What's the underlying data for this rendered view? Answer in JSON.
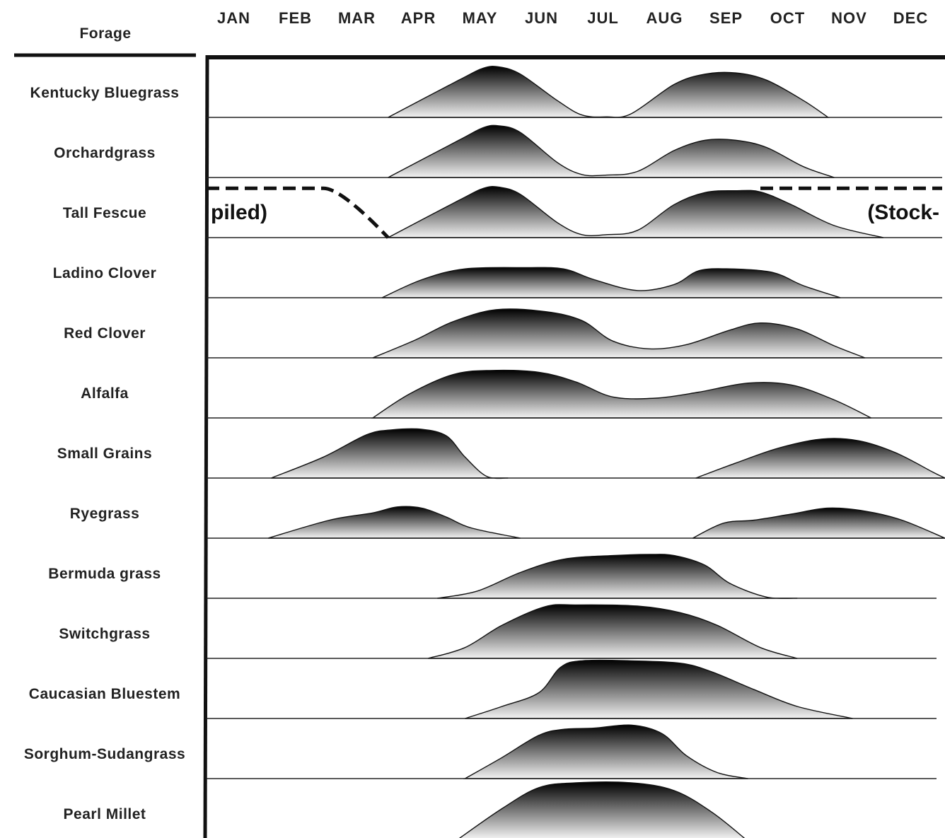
{
  "chart_data": {
    "type": "area",
    "row_header": "Forage",
    "months": [
      "JAN",
      "FEB",
      "MAR",
      "APR",
      "MAY",
      "JUN",
      "JUL",
      "AUG",
      "SEP",
      "OCT",
      "NOV",
      "DEC"
    ],
    "x_range": [
      0,
      12
    ],
    "y_range": [
      0,
      1
    ],
    "fill_gradient": {
      "top": "#000000",
      "bottom": "#f2f2f2"
    },
    "series": [
      {
        "name": "Kentucky Bluegrass",
        "points": [
          [
            2.95,
            0
          ],
          [
            4.1,
            0.62
          ],
          [
            4.5,
            0.82
          ],
          [
            4.75,
            0.84
          ],
          [
            5.1,
            0.72
          ],
          [
            5.7,
            0.28
          ],
          [
            6.1,
            0.04
          ],
          [
            6.5,
            0.01
          ],
          [
            6.9,
            0.06
          ],
          [
            7.6,
            0.55
          ],
          [
            8.1,
            0.72
          ],
          [
            8.6,
            0.74
          ],
          [
            9.1,
            0.62
          ],
          [
            9.7,
            0.28
          ],
          [
            10.1,
            0
          ]
        ]
      },
      {
        "name": "Orchardgrass",
        "points": [
          [
            2.95,
            0
          ],
          [
            4.1,
            0.62
          ],
          [
            4.5,
            0.83
          ],
          [
            4.75,
            0.86
          ],
          [
            5.1,
            0.75
          ],
          [
            5.7,
            0.25
          ],
          [
            6.1,
            0.05
          ],
          [
            6.5,
            0.04
          ],
          [
            7.0,
            0.1
          ],
          [
            7.6,
            0.45
          ],
          [
            8.1,
            0.62
          ],
          [
            8.6,
            0.62
          ],
          [
            9.1,
            0.5
          ],
          [
            9.7,
            0.18
          ],
          [
            10.2,
            0
          ]
        ]
      },
      {
        "name": "Tall Fescue",
        "points": [
          [
            2.95,
            0
          ],
          [
            4.1,
            0.62
          ],
          [
            4.5,
            0.82
          ],
          [
            4.75,
            0.84
          ],
          [
            5.1,
            0.72
          ],
          [
            5.7,
            0.25
          ],
          [
            6.1,
            0.05
          ],
          [
            6.5,
            0.05
          ],
          [
            7.0,
            0.12
          ],
          [
            7.6,
            0.55
          ],
          [
            8.1,
            0.75
          ],
          [
            8.6,
            0.78
          ],
          [
            9.0,
            0.76
          ],
          [
            9.5,
            0.55
          ],
          [
            10.2,
            0.2
          ],
          [
            11.0,
            0
          ]
        ]
      },
      {
        "name": "Ladino Clover",
        "points": [
          [
            2.85,
            0
          ],
          [
            3.5,
            0.3
          ],
          [
            4.2,
            0.48
          ],
          [
            5.2,
            0.5
          ],
          [
            5.8,
            0.48
          ],
          [
            6.3,
            0.3
          ],
          [
            7.0,
            0.12
          ],
          [
            7.6,
            0.22
          ],
          [
            8.0,
            0.45
          ],
          [
            8.5,
            0.48
          ],
          [
            9.2,
            0.42
          ],
          [
            9.7,
            0.2
          ],
          [
            10.3,
            0
          ]
        ]
      },
      {
        "name": "Red Clover",
        "points": [
          [
            2.7,
            0
          ],
          [
            3.4,
            0.3
          ],
          [
            4.0,
            0.6
          ],
          [
            4.7,
            0.8
          ],
          [
            5.5,
            0.77
          ],
          [
            6.1,
            0.62
          ],
          [
            6.6,
            0.28
          ],
          [
            7.2,
            0.15
          ],
          [
            7.8,
            0.22
          ],
          [
            8.5,
            0.46
          ],
          [
            9.0,
            0.58
          ],
          [
            9.6,
            0.48
          ],
          [
            10.2,
            0.2
          ],
          [
            10.7,
            0
          ]
        ]
      },
      {
        "name": "Alfalfa",
        "points": [
          [
            2.7,
            0
          ],
          [
            3.3,
            0.4
          ],
          [
            4.0,
            0.72
          ],
          [
            4.6,
            0.79
          ],
          [
            5.4,
            0.76
          ],
          [
            6.0,
            0.6
          ],
          [
            6.6,
            0.35
          ],
          [
            7.3,
            0.33
          ],
          [
            8.0,
            0.43
          ],
          [
            8.8,
            0.58
          ],
          [
            9.5,
            0.55
          ],
          [
            10.2,
            0.3
          ],
          [
            10.8,
            0
          ]
        ]
      },
      {
        "name": "Small Grains",
        "points": [
          [
            1.05,
            0
          ],
          [
            1.9,
            0.35
          ],
          [
            2.6,
            0.72
          ],
          [
            3.0,
            0.8
          ],
          [
            3.5,
            0.81
          ],
          [
            3.9,
            0.7
          ],
          [
            4.2,
            0.35
          ],
          [
            4.55,
            0.03
          ],
          [
            4.9,
            0
          ],
          [
            7.95,
            0
          ],
          [
            8.6,
            0.25
          ],
          [
            9.3,
            0.5
          ],
          [
            10.0,
            0.65
          ],
          [
            10.6,
            0.62
          ],
          [
            11.2,
            0.42
          ],
          [
            11.8,
            0.1
          ],
          [
            12.0,
            0
          ]
        ]
      },
      {
        "name": "Ryegrass",
        "points": [
          [
            1.0,
            0
          ],
          [
            2.0,
            0.3
          ],
          [
            2.7,
            0.42
          ],
          [
            3.1,
            0.52
          ],
          [
            3.5,
            0.5
          ],
          [
            3.9,
            0.35
          ],
          [
            4.3,
            0.17
          ],
          [
            5.1,
            0
          ],
          [
            7.9,
            0
          ],
          [
            8.4,
            0.25
          ],
          [
            8.9,
            0.3
          ],
          [
            9.5,
            0.4
          ],
          [
            10.1,
            0.5
          ],
          [
            10.7,
            0.45
          ],
          [
            11.3,
            0.3
          ],
          [
            12.0,
            0
          ]
        ]
      },
      {
        "name": "Bermuda grass",
        "points": [
          [
            3.75,
            0
          ],
          [
            4.4,
            0.12
          ],
          [
            5.1,
            0.43
          ],
          [
            5.8,
            0.65
          ],
          [
            6.6,
            0.71
          ],
          [
            7.2,
            0.73
          ],
          [
            7.6,
            0.71
          ],
          [
            8.1,
            0.55
          ],
          [
            8.5,
            0.25
          ],
          [
            9.1,
            0.02
          ],
          [
            9.6,
            0
          ]
        ]
      },
      {
        "name": "Switchgrass",
        "points": [
          [
            3.6,
            0
          ],
          [
            4.2,
            0.18
          ],
          [
            4.8,
            0.55
          ],
          [
            5.5,
            0.86
          ],
          [
            6.0,
            0.89
          ],
          [
            7.0,
            0.87
          ],
          [
            7.7,
            0.76
          ],
          [
            8.3,
            0.55
          ],
          [
            9.0,
            0.18
          ],
          [
            9.6,
            0
          ]
        ]
      },
      {
        "name": "Caucasian Bluestem",
        "points": [
          [
            4.2,
            0
          ],
          [
            4.8,
            0.2
          ],
          [
            5.4,
            0.43
          ],
          [
            5.75,
            0.85
          ],
          [
            6.1,
            0.96
          ],
          [
            6.9,
            0.96
          ],
          [
            7.7,
            0.92
          ],
          [
            8.2,
            0.78
          ],
          [
            8.9,
            0.48
          ],
          [
            9.6,
            0.2
          ],
          [
            10.5,
            0
          ]
        ]
      },
      {
        "name": "Sorghum-Sudangrass",
        "points": [
          [
            4.2,
            0
          ],
          [
            4.8,
            0.35
          ],
          [
            5.4,
            0.72
          ],
          [
            5.8,
            0.82
          ],
          [
            6.3,
            0.84
          ],
          [
            6.9,
            0.89
          ],
          [
            7.4,
            0.75
          ],
          [
            7.8,
            0.38
          ],
          [
            8.3,
            0.1
          ],
          [
            8.8,
            0
          ]
        ]
      },
      {
        "name": "Pearl Millet",
        "points": [
          [
            4.1,
            0
          ],
          [
            4.8,
            0.5
          ],
          [
            5.4,
            0.85
          ],
          [
            6.0,
            0.93
          ],
          [
            6.9,
            0.93
          ],
          [
            7.6,
            0.8
          ],
          [
            8.2,
            0.45
          ],
          [
            8.75,
            0
          ]
        ]
      }
    ],
    "annotations": [
      {
        "series": "Tall Fescue",
        "text_left": "piled)",
        "text_right": "(Stock-",
        "dashed_level": 0.82,
        "dashed_left_x": [
          0,
          1.9,
          2.95
        ],
        "dashed_right_x": [
          9.0,
          12.0
        ],
        "style": "dashed"
      }
    ]
  }
}
